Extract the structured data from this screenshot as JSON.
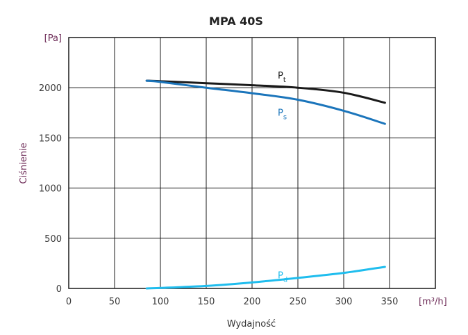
{
  "chart_data": {
    "type": "line",
    "title": "MPA 40S",
    "xlabel": "Wydajność",
    "ylabel": "Ciśnienie",
    "x_unit": "[m³/h]",
    "y_unit": "[Pa]",
    "xlim": [
      0,
      400
    ],
    "ylim": [
      0,
      2500
    ],
    "xticks": [
      0,
      50,
      100,
      150,
      200,
      250,
      300,
      350
    ],
    "yticks": [
      0,
      500,
      1000,
      1500,
      2000
    ],
    "grid": true,
    "series": [
      {
        "name": "P",
        "sub": "t",
        "color": "#1a1a1a",
        "label_at": [
          230,
          2090
        ],
        "x": [
          85,
          100,
          150,
          200,
          250,
          300,
          345
        ],
        "y": [
          2070,
          2065,
          2045,
          2025,
          2000,
          1950,
          1850
        ]
      },
      {
        "name": "P",
        "sub": "s",
        "color": "#1b75bb",
        "label_at": [
          230,
          1720
        ],
        "x": [
          85,
          100,
          150,
          200,
          250,
          300,
          345
        ],
        "y": [
          2070,
          2058,
          2000,
          1945,
          1880,
          1770,
          1640
        ]
      },
      {
        "name": "P",
        "sub": "d",
        "color": "#1fbdee",
        "label_at": [
          230,
          100
        ],
        "x": [
          85,
          100,
          150,
          200,
          250,
          300,
          345
        ],
        "y": [
          0,
          5,
          25,
          60,
          105,
          155,
          215
        ]
      }
    ]
  }
}
